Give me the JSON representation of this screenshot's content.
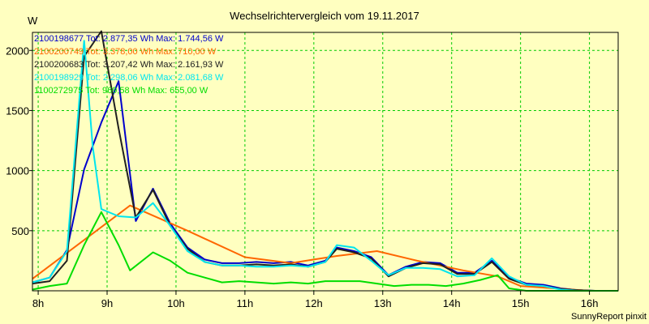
{
  "chart_data": {
    "type": "line",
    "title": "Wechselrichtervergleich vom 19.11.2017",
    "ylabel": "W",
    "xlabel": "",
    "footer": "SunnyReport pinxit",
    "xlim": [
      7.9167,
      16.4167
    ],
    "ylim": [
      0,
      2150
    ],
    "x_ticks": [
      {
        "value": 8,
        "label": "8h"
      },
      {
        "value": 9,
        "label": "9h"
      },
      {
        "value": 10,
        "label": "10h"
      },
      {
        "value": 11,
        "label": "11h"
      },
      {
        "value": 12,
        "label": "12h"
      },
      {
        "value": 13,
        "label": "13h"
      },
      {
        "value": 14,
        "label": "14h"
      },
      {
        "value": 15,
        "label": "15h"
      },
      {
        "value": 16,
        "label": "16h"
      }
    ],
    "y_ticks": [
      {
        "value": 500,
        "label": "500"
      },
      {
        "value": 1000,
        "label": "1000"
      },
      {
        "value": 1500,
        "label": "1500"
      },
      {
        "value": 2000,
        "label": "2000"
      }
    ],
    "grid": true,
    "legend_position": "top-left",
    "series": [
      {
        "name": "2100198677",
        "legend_text": "2100198677 Tot: 2.877,35 Wh Max: 1.744,56 W",
        "color": "#0000cc",
        "x": [
          7.9167,
          8.1667,
          8.4167,
          8.6667,
          8.9167,
          9.1667,
          9.4167,
          9.6667,
          9.9167,
          10.1667,
          10.4167,
          10.6667,
          10.9167,
          11.1667,
          11.4167,
          11.6667,
          11.9167,
          12.1667,
          12.3333,
          12.5833,
          12.8333,
          13.0833,
          13.3333,
          13.5833,
          13.8333,
          14.0833,
          14.3333,
          14.5833,
          14.8333,
          15.0833,
          15.3333,
          15.5833,
          15.8333,
          16.0833,
          16.3333,
          16.4167
        ],
        "y": [
          70,
          110,
          340,
          1010,
          1400,
          1744,
          580,
          850,
          560,
          360,
          260,
          230,
          230,
          240,
          230,
          240,
          210,
          250,
          360,
          330,
          280,
          130,
          200,
          240,
          230,
          150,
          150,
          250,
          110,
          60,
          50,
          20,
          5,
          0,
          0,
          0
        ]
      },
      {
        "name": "2100200749",
        "legend_text": "2100200749 Tot: 3.378,00 Wh Max: 710,00 W",
        "color": "#ff6600",
        "x": [
          7.9167,
          9.3333,
          10.1667,
          11.0,
          11.6667,
          12.0,
          12.3333,
          12.9167,
          13.5,
          14.1667,
          14.6667,
          15.0,
          16.0,
          16.4167
        ],
        "y": [
          100,
          710,
          500,
          280,
          230,
          260,
          290,
          330,
          250,
          170,
          120,
          40,
          0,
          0
        ]
      },
      {
        "name": "2100200683",
        "legend_text": "2100200683 Tot: 3.207,42 Wh Max: 2.161,93 W",
        "color": "#202020",
        "x": [
          7.9167,
          8.1667,
          8.4167,
          8.6667,
          8.9167,
          9.1667,
          9.4167,
          9.6667,
          9.9167,
          10.1667,
          10.4167,
          10.6667,
          10.9167,
          11.1667,
          11.4167,
          11.6667,
          11.9167,
          12.1667,
          12.3333,
          12.5833,
          12.8333,
          13.0833,
          13.3333,
          13.5833,
          13.8333,
          14.0833,
          14.3333,
          14.5833,
          14.8333,
          15.0833,
          15.3333,
          15.5833,
          15.8333,
          16.0833,
          16.3333,
          16.4167
        ],
        "y": [
          60,
          80,
          250,
          1950,
          2160,
          1350,
          610,
          840,
          540,
          350,
          240,
          210,
          210,
          220,
          210,
          220,
          200,
          240,
          350,
          320,
          270,
          120,
          190,
          230,
          220,
          140,
          140,
          240,
          100,
          50,
          40,
          15,
          5,
          0,
          0,
          0
        ]
      },
      {
        "name": "2100198929",
        "legend_text": "2100198929 Tot: 2.298,06 Wh Max: 2.081,68 W",
        "color": "#00e5ee",
        "x": [
          7.9167,
          8.1667,
          8.4167,
          8.6667,
          8.7917,
          8.9167,
          9.1667,
          9.4167,
          9.6667,
          9.9167,
          10.1667,
          10.4167,
          10.6667,
          10.9167,
          11.1667,
          11.4167,
          11.6667,
          11.9167,
          12.1667,
          12.3333,
          12.5833,
          12.8333,
          13.0833,
          13.3333,
          13.5833,
          13.8333,
          14.0833,
          14.3333,
          14.5833,
          14.8333,
          15.0833,
          15.3333,
          15.5833,
          15.8333,
          16.0833,
          16.3333,
          16.4167
        ],
        "y": [
          70,
          110,
          330,
          2081,
          1200,
          680,
          620,
          610,
          730,
          540,
          330,
          240,
          210,
          210,
          200,
          200,
          210,
          200,
          240,
          380,
          360,
          250,
          130,
          190,
          190,
          180,
          120,
          130,
          270,
          120,
          50,
          40,
          10,
          0,
          0,
          0,
          0
        ]
      },
      {
        "name": "1100272975",
        "legend_text": "1100272975 Tot: 969,58 Wh Max: 655,00 W",
        "color": "#00dd00",
        "x": [
          7.9167,
          8.1667,
          8.4167,
          8.6667,
          8.9167,
          9.1667,
          9.3333,
          9.6667,
          9.9167,
          10.1667,
          10.4167,
          10.6667,
          10.9167,
          11.1667,
          11.4167,
          11.6667,
          11.9167,
          12.1667,
          12.4167,
          12.6667,
          12.9167,
          13.1667,
          13.4167,
          13.6667,
          13.9167,
          14.1667,
          14.4167,
          14.6667,
          14.8333,
          15.0833,
          15.3333,
          15.5833,
          15.8333,
          16.0833,
          16.3333,
          16.4167
        ],
        "y": [
          10,
          40,
          60,
          380,
          655,
          380,
          170,
          320,
          250,
          150,
          110,
          70,
          80,
          70,
          60,
          70,
          60,
          80,
          80,
          80,
          60,
          40,
          50,
          50,
          40,
          60,
          90,
          130,
          20,
          0,
          0,
          0,
          0,
          0,
          0,
          0
        ]
      }
    ]
  }
}
